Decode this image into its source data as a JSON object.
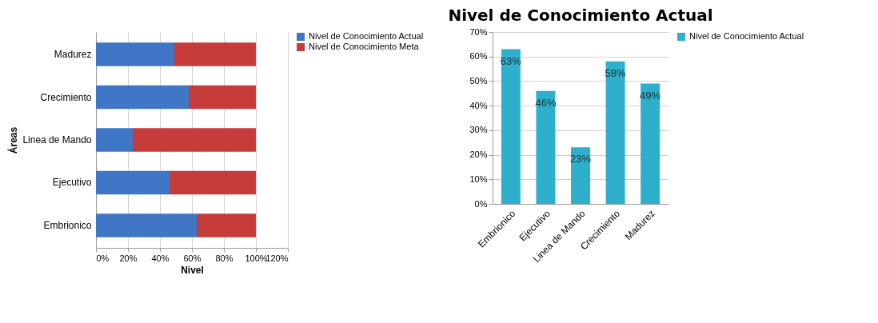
{
  "chart_data": [
    {
      "type": "bar",
      "orientation": "horizontal",
      "stacked": true,
      "xlabel": "Nivel",
      "ylabel": "Áreas",
      "categories": [
        "Madurez",
        "Crecimiento",
        "Linea de Mando",
        "Ejecutivo",
        "Embrionico"
      ],
      "series": [
        {
          "name": "Nivel de Conocimiento Actual",
          "color": "#3f76c6",
          "values": [
            49,
            58,
            23,
            46,
            63
          ]
        },
        {
          "name": "Nivel de Conocimiento Meta",
          "color": "#c53c3a",
          "values": [
            51,
            42,
            77,
            54,
            37
          ]
        }
      ],
      "xlim": [
        0,
        120
      ],
      "xticks": [
        {
          "value": 0,
          "label": "0%"
        },
        {
          "value": 20,
          "label": "20%"
        },
        {
          "value": 40,
          "label": "40%"
        },
        {
          "value": 60,
          "label": "60%"
        },
        {
          "value": 80,
          "label": "80%"
        },
        {
          "value": 100,
          "label": "100%"
        },
        {
          "value": 120,
          "label": "120%"
        }
      ],
      "grid": "x",
      "legend": "right"
    },
    {
      "type": "bar",
      "title": "Nivel de Conocimiento Actual",
      "categories": [
        "Embrionico",
        "Ejecutivo",
        "Linea de Mando",
        "Crecimiento",
        "Madurez"
      ],
      "series": [
        {
          "name": "Nivel de Conocimiento Actual",
          "color": "#2eafcb",
          "values": [
            63,
            46,
            23,
            58,
            49
          ],
          "value_labels": [
            "63%",
            "46%",
            "23%",
            "58%",
            "49%"
          ]
        }
      ],
      "ylim": [
        0,
        70
      ],
      "yticks": [
        {
          "value": 0,
          "label": "0%"
        },
        {
          "value": 10,
          "label": "10%"
        },
        {
          "value": 20,
          "label": "20%"
        },
        {
          "value": 30,
          "label": "30%"
        },
        {
          "value": 40,
          "label": "40%"
        },
        {
          "value": 50,
          "label": "50%"
        },
        {
          "value": 60,
          "label": "60%"
        },
        {
          "value": 70,
          "label": "70%"
        }
      ],
      "grid": "y",
      "legend": "right"
    }
  ]
}
